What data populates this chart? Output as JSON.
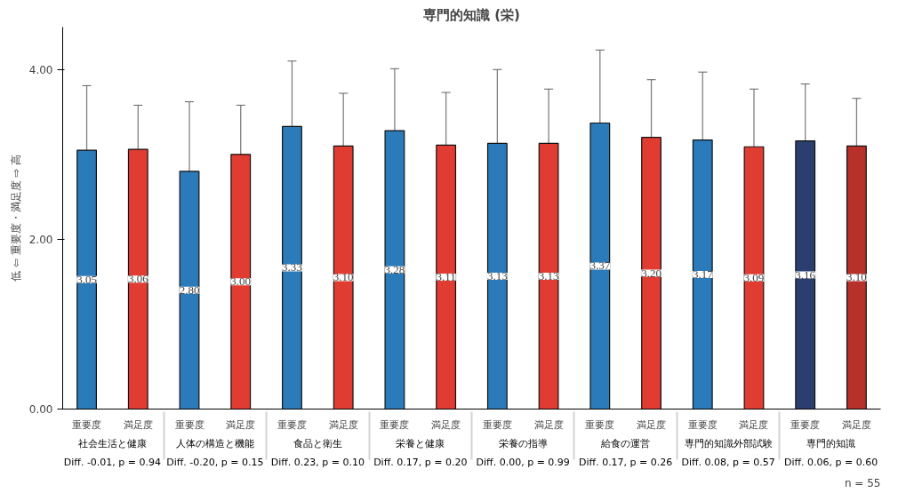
{
  "chart_data": {
    "type": "bar",
    "title": "専門的知識 (栄)",
    "ylabel": "低 ⇦ 重要度・満足度 ⇨ 高",
    "categories": [
      "重要度",
      "満足度",
      "重要度",
      "満足度",
      "重要度",
      "満足度",
      "重要度",
      "満足度",
      "重要度",
      "満足度",
      "重要度",
      "満足度",
      "重要度",
      "満足度",
      "重要度",
      "満足度"
    ],
    "values": [
      3.05,
      3.06,
      2.8,
      3.0,
      3.33,
      3.1,
      3.28,
      3.11,
      3.13,
      3.13,
      3.37,
      3.2,
      3.17,
      3.09,
      3.16,
      3.1
    ],
    "errors": [
      0.76,
      0.52,
      0.82,
      0.58,
      0.77,
      0.62,
      0.73,
      0.62,
      0.87,
      0.64,
      0.86,
      0.68,
      0.8,
      0.68,
      0.67,
      0.56
    ],
    "colors": [
      "#2b7bba",
      "#e03c31",
      "#2b7bba",
      "#e03c31",
      "#2b7bba",
      "#e03c31",
      "#2b7bba",
      "#e03c31",
      "#2b7bba",
      "#e03c31",
      "#2b7bba",
      "#e03c31",
      "#2b7bba",
      "#e03c31",
      "#2a3f6e",
      "#b8302a"
    ],
    "annotations": [
      "社会生活と健康",
      "人体の構造と機能",
      "食品と衛生",
      "栄養と健康",
      "栄養の指導",
      "給食の運営",
      "専門的知識外部試験",
      "専門的知識",
      "Diff. -0.01, p = 0.94",
      "Diff. -0.20, p = 0.15",
      "Diff. 0.23, p = 0.10",
      "Diff. 0.17, p = 0.20",
      "Diff. 0.00, p = 0.99",
      "Diff. 0.17, p = 0.26",
      "Diff. 0.08, p = 0.57",
      "Diff. 0.06, p = 0.60",
      "n = 55"
    ],
    "ylim": [
      0,
      4.5
    ],
    "yticks": [
      {
        "value": 0,
        "label": "0.00"
      },
      {
        "value": 2,
        "label": "2.00"
      },
      {
        "value": 4,
        "label": "4.00"
      }
    ],
    "value_labels": [
      "3.05",
      "3.06",
      "2.80",
      "3.00",
      "3.33",
      "3.10",
      "3.28",
      "3.11",
      "3.13",
      "3.13",
      "3.37",
      "3.20",
      "3.17",
      "3.09",
      "3.16",
      "3.10"
    ],
    "grid": false
  }
}
